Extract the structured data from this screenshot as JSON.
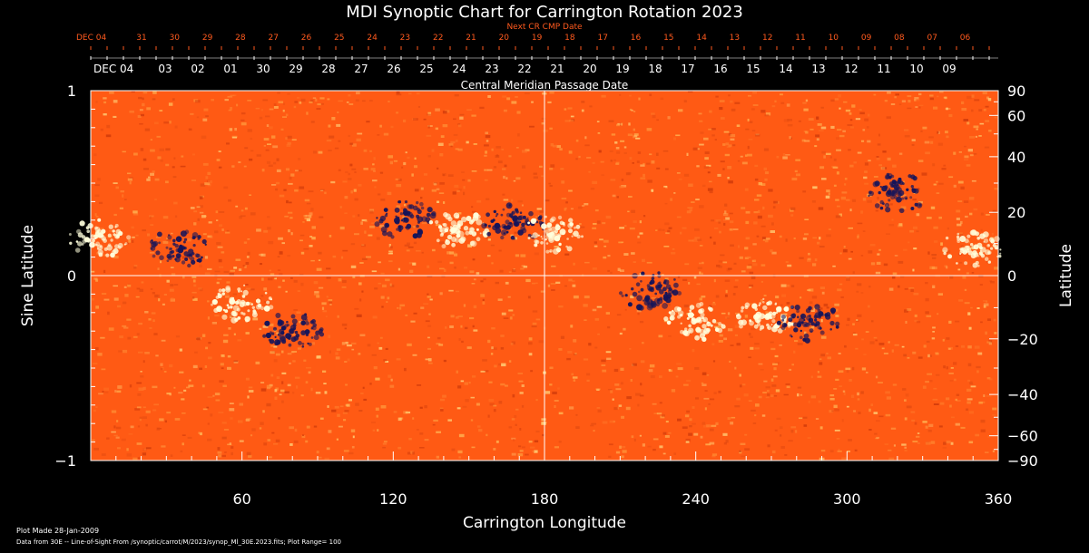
{
  "chart_data": {
    "type": "heatmap",
    "title": "MDI Synoptic Chart for Carrington Rotation 2023",
    "xlabel": "Carrington Longitude",
    "ylabel_left": "Sine Latitude",
    "ylabel_right": "Latitude",
    "xlim": [
      0,
      360
    ],
    "ylim": [
      -1,
      1
    ],
    "x_ticks": [
      60,
      120,
      180,
      240,
      300,
      360
    ],
    "y_ticks_left": [
      {
        "v": 1,
        "label": "1"
      },
      {
        "v": 0,
        "label": "0"
      },
      {
        "v": -1,
        "label": "−1"
      }
    ],
    "y_ticks_right": [
      {
        "deg": 90,
        "label": "90"
      },
      {
        "deg": 60,
        "label": "60"
      },
      {
        "deg": 40,
        "label": "40"
      },
      {
        "deg": 20,
        "label": "20"
      },
      {
        "deg": 0,
        "label": "0"
      },
      {
        "deg": -20,
        "label": "−20"
      },
      {
        "deg": -40,
        "label": "−40"
      },
      {
        "deg": -60,
        "label": "−60"
      },
      {
        "deg": -90,
        "label": "−90"
      }
    ],
    "central_meridian_label": "Central Meridian Passage Date",
    "cmp_dates": [
      "DEC 04",
      "03",
      "02",
      "01",
      "30",
      "29",
      "28",
      "27",
      "26",
      "25",
      "24",
      "23",
      "22",
      "21",
      "20",
      "19",
      "18",
      "17",
      "16",
      "15",
      "14",
      "13",
      "12",
      "11",
      "10",
      "09"
    ],
    "next_cr_label": "Next CR CMP Date",
    "next_cr_dates": [
      "DEC 04",
      "31",
      "30",
      "29",
      "28",
      "27",
      "26",
      "25",
      "24",
      "23",
      "22",
      "21",
      "20",
      "19",
      "18",
      "17",
      "16",
      "15",
      "14",
      "13",
      "12",
      "11",
      "10",
      "09",
      "08",
      "07",
      "06"
    ],
    "footer_line1": "Plot Made 28-Jan-2009",
    "footer_line2": "Data from 30E -- Line-of-Sight From /synoptic/carrot/M/2023/synop_Ml_30E.2023.fits; Plot Range= 100",
    "regions": [
      {
        "lon": 3,
        "sinlat": 0.2,
        "polarity": "positive"
      },
      {
        "lon": 35,
        "sinlat": 0.15,
        "polarity": "negative"
      },
      {
        "lon": 60,
        "sinlat": -0.15,
        "polarity": "positive"
      },
      {
        "lon": 80,
        "sinlat": -0.3,
        "polarity": "negative"
      },
      {
        "lon": 125,
        "sinlat": 0.3,
        "polarity": "negative"
      },
      {
        "lon": 145,
        "sinlat": 0.25,
        "polarity": "positive"
      },
      {
        "lon": 168,
        "sinlat": 0.28,
        "polarity": "negative"
      },
      {
        "lon": 183,
        "sinlat": 0.22,
        "polarity": "positive"
      },
      {
        "lon": 222,
        "sinlat": -0.08,
        "polarity": "negative"
      },
      {
        "lon": 240,
        "sinlat": -0.25,
        "polarity": "positive"
      },
      {
        "lon": 268,
        "sinlat": -0.22,
        "polarity": "positive"
      },
      {
        "lon": 285,
        "sinlat": -0.25,
        "polarity": "negative"
      },
      {
        "lon": 320,
        "sinlat": 0.45,
        "polarity": "negative"
      },
      {
        "lon": 350,
        "sinlat": 0.15,
        "polarity": "positive"
      }
    ]
  },
  "colors": {
    "background": "#000000",
    "field_base": "#ff5a14",
    "positive": "#ffffdc",
    "negative": "#14145a",
    "axes": "#ffffff",
    "next_cr_text": "#ff5a1e"
  }
}
